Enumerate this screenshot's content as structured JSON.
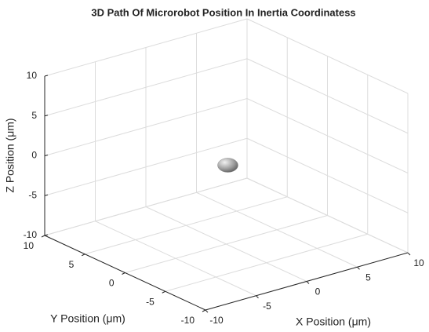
{
  "chart_data": {
    "type": "scatter3d",
    "title": "3D Path Of Microrobot Position In Inertia Coordinatess",
    "x_label": "X Position (μm)",
    "y_label": "Y Position (μm)",
    "z_label": "Z Position (μm)",
    "x": [
      0
    ],
    "y": [
      0
    ],
    "z": [
      0
    ],
    "color": "#8c8c8c",
    "xlim": [
      -10,
      10
    ],
    "ylim": [
      -10,
      10
    ],
    "zlim": [
      -10,
      10
    ],
    "xticks": [
      -10,
      -5,
      0,
      5,
      10
    ],
    "yticks": [
      -10,
      -5,
      0,
      5,
      10
    ],
    "zticks": [
      -10,
      -5,
      0,
      5,
      10
    ],
    "grid": true
  }
}
